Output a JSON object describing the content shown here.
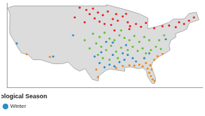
{
  "chart_data": {
    "type": "scatter",
    "legend_title": "Meteorological Season",
    "legend": "bottom-left",
    "grid": false,
    "tick_labels": false,
    "marker": "circle",
    "xlim": [
      -125,
      -66
    ],
    "ylim": [
      24,
      50
    ],
    "series": [
      {
        "color": "#e8231f",
        "points": [
          [
            -103,
            48.5
          ],
          [
            -101,
            47.8
          ],
          [
            -99,
            48.2
          ],
          [
            -97.5,
            47
          ],
          [
            -96,
            46.2
          ],
          [
            -94.5,
            47.3
          ],
          [
            -93,
            45
          ],
          [
            -91.5,
            44.5
          ],
          [
            -90,
            45.8
          ],
          [
            -88.5,
            44
          ],
          [
            -100,
            46.5
          ],
          [
            -98.5,
            45.2
          ],
          [
            -97,
            44.2
          ],
          [
            -95.5,
            43.5
          ],
          [
            -93.5,
            43.2
          ],
          [
            -92,
            46.5
          ],
          [
            -89,
            46.6
          ],
          [
            -87.8,
            42.8
          ],
          [
            -86,
            43.5
          ],
          [
            -84.5,
            42.6
          ],
          [
            -83,
            43.8
          ],
          [
            -80.5,
            42.2
          ],
          [
            -78,
            42.8
          ],
          [
            -76,
            43
          ],
          [
            -74,
            42.5
          ],
          [
            -73,
            44
          ],
          [
            -71.5,
            43.5
          ],
          [
            -70,
            44.5
          ],
          [
            -68.5,
            45.5
          ],
          [
            -101.5,
            44
          ],
          [
            -104.5,
            45.5
          ],
          [
            -88,
            41.9
          ],
          [
            -92.5,
            41.5
          ]
        ]
      },
      {
        "color": "#5ec234",
        "points": [
          [
            -99,
            40.5
          ],
          [
            -97,
            39.5
          ],
          [
            -95.5,
            40.8
          ],
          [
            -94,
            39
          ],
          [
            -92.5,
            38.5
          ],
          [
            -91,
            40
          ],
          [
            -89.5,
            39.2
          ],
          [
            -88,
            38.5
          ],
          [
            -86.5,
            39.8
          ],
          [
            -85,
            38
          ],
          [
            -83.5,
            39.5
          ],
          [
            -82,
            38.5
          ],
          [
            -98,
            37.5
          ],
          [
            -96.5,
            36.5
          ],
          [
            -95,
            35.5
          ],
          [
            -93.5,
            36.8
          ],
          [
            -92,
            35
          ],
          [
            -90.5,
            36.2
          ],
          [
            -88.5,
            35.5
          ],
          [
            -87,
            36.5
          ],
          [
            -85.5,
            35.2
          ],
          [
            -84,
            36
          ],
          [
            -83,
            34.5
          ],
          [
            -81.5,
            35.5
          ],
          [
            -80,
            36.5
          ],
          [
            -78.5,
            35.8
          ],
          [
            -97.5,
            34
          ],
          [
            -96,
            33
          ],
          [
            -94,
            32.5
          ],
          [
            -91.5,
            33
          ],
          [
            -100,
            36
          ],
          [
            -101.5,
            38.5
          ],
          [
            -90.5,
            41.5
          ],
          [
            -79,
            38.5
          ],
          [
            -77.5,
            40
          ]
        ]
      },
      {
        "name": "Winter",
        "color": "#2a8fc4",
        "points": [
          [
            -97,
            31.5
          ],
          [
            -95.5,
            30.2
          ],
          [
            -94,
            31
          ],
          [
            -92.5,
            30.5
          ],
          [
            -91,
            31.8
          ],
          [
            -89.5,
            32.5
          ],
          [
            -88.5,
            34
          ],
          [
            -87,
            33
          ],
          [
            -86,
            32
          ],
          [
            -98.5,
            33.5
          ],
          [
            -96.5,
            34.8
          ],
          [
            -93,
            34
          ],
          [
            -90,
            34.5
          ],
          [
            -89,
            37
          ],
          [
            -93,
            37.8
          ],
          [
            -95,
            38
          ],
          [
            -83.5,
            33
          ],
          [
            -82,
            34.5
          ],
          [
            -111,
            33.5
          ],
          [
            -105,
            40
          ],
          [
            -122,
            37.5
          ],
          [
            -77,
            38.8
          ]
        ]
      },
      {
        "color": "#f08a1c",
        "points": [
          [
            -90,
            30.6
          ],
          [
            -88,
            30.8
          ],
          [
            -86.5,
            30.7
          ],
          [
            -85,
            31
          ],
          [
            -84,
            30.5
          ],
          [
            -82.5,
            29.8
          ],
          [
            -82,
            28.5
          ],
          [
            -81.5,
            27.5
          ],
          [
            -81,
            26.5
          ],
          [
            -80.4,
            26
          ],
          [
            -81.3,
            29.5
          ],
          [
            -81.7,
            30.8
          ],
          [
            -80.5,
            32.5
          ],
          [
            -79.5,
            33.6
          ],
          [
            -78,
            34.3
          ],
          [
            -83,
            31.5
          ],
          [
            -97.5,
            27.2
          ],
          [
            -98,
            29.5
          ],
          [
            -92,
            30
          ],
          [
            -119,
            34.2
          ],
          [
            -112,
            33.4
          ]
        ]
      }
    ]
  }
}
